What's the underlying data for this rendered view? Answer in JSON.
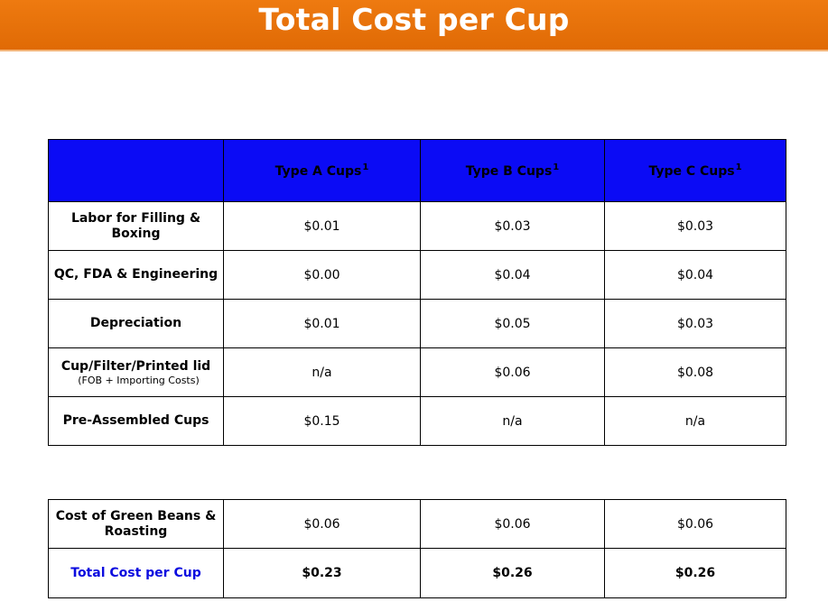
{
  "title": "Total Cost per Cup",
  "columns": [
    "",
    "Type A Cups",
    "Type B Cups",
    "Type C Cups"
  ],
  "footnote_marker": "1",
  "rows": [
    {
      "label": "Labor for Filling & Boxing",
      "sub": "",
      "a": "$0.01",
      "b": "$0.03",
      "c": "$0.03"
    },
    {
      "label": "QC, FDA & Engineering",
      "sub": "",
      "a": "$0.00",
      "b": "$0.04",
      "c": "$0.04"
    },
    {
      "label": "Depreciation",
      "sub": "",
      "a": "$0.01",
      "b": "$0.05",
      "c": "$0.03"
    },
    {
      "label": "Cup/Filter/Printed lid",
      "sub": "(FOB + Importing Costs)",
      "a": "n/a",
      "b": "$0.06",
      "c": "$0.08"
    },
    {
      "label": "Pre-Assembled Cups",
      "sub": "",
      "a": "$0.15",
      "b": "n/a",
      "c": "n/a"
    }
  ],
  "summary": [
    {
      "label": "Cost of Green Beans & Roasting",
      "a": "$0.06",
      "b": "$0.06",
      "c": "$0.06"
    },
    {
      "label": "Total  Cost per Cup",
      "a": "$0.23",
      "b": "$0.26",
      "c": "$0.26"
    }
  ],
  "colors": {
    "banner": "#e8720a",
    "header": "#0b0bf5",
    "total_text": "#0b0bdf"
  }
}
